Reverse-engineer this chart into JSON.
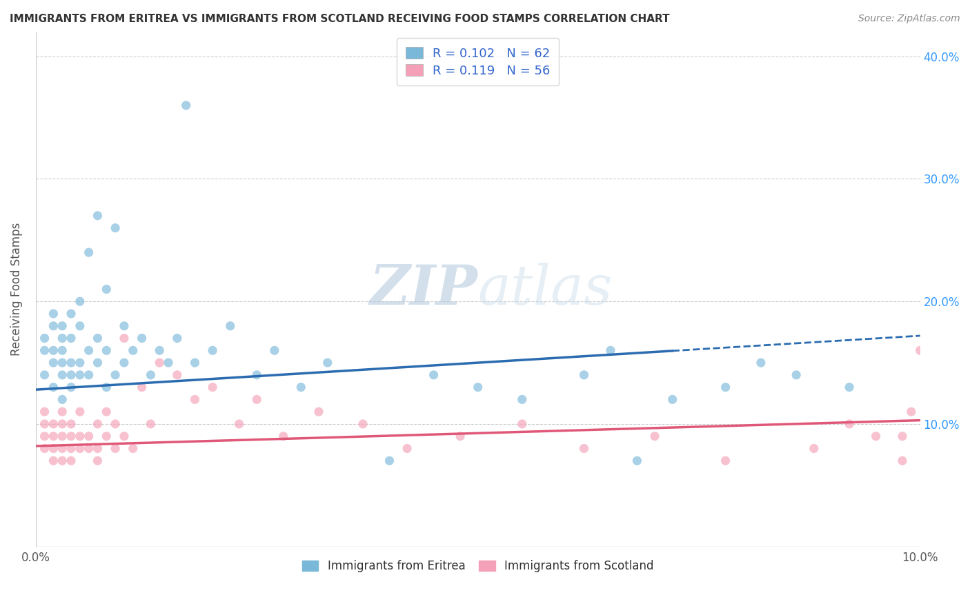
{
  "title": "IMMIGRANTS FROM ERITREA VS IMMIGRANTS FROM SCOTLAND RECEIVING FOOD STAMPS CORRELATION CHART",
  "source": "Source: ZipAtlas.com",
  "ylabel": "Receiving Food Stamps",
  "eritrea_color": "#7ab8d9",
  "scotland_color": "#f4a0b8",
  "trend_eritrea_color": "#2b6cb0",
  "trend_scotland_color": "#e05878",
  "watermark_color": "#c5d8ea",
  "xlim": [
    0.0,
    0.1
  ],
  "ylim": [
    0.0,
    0.42
  ],
  "eritrea_x": [
    0.001,
    0.001,
    0.001,
    0.002,
    0.002,
    0.002,
    0.002,
    0.002,
    0.003,
    0.003,
    0.003,
    0.003,
    0.003,
    0.003,
    0.004,
    0.004,
    0.004,
    0.004,
    0.004,
    0.005,
    0.005,
    0.005,
    0.005,
    0.006,
    0.006,
    0.006,
    0.007,
    0.007,
    0.007,
    0.008,
    0.008,
    0.008,
    0.009,
    0.009,
    0.01,
    0.01,
    0.011,
    0.012,
    0.013,
    0.014,
    0.015,
    0.016,
    0.017,
    0.018,
    0.02,
    0.022,
    0.025,
    0.027,
    0.03,
    0.033,
    0.04,
    0.045,
    0.05,
    0.055,
    0.062,
    0.065,
    0.068,
    0.072,
    0.078,
    0.082,
    0.086,
    0.092
  ],
  "eritrea_y": [
    0.14,
    0.16,
    0.17,
    0.13,
    0.15,
    0.16,
    0.18,
    0.19,
    0.12,
    0.14,
    0.15,
    0.16,
    0.17,
    0.18,
    0.13,
    0.14,
    0.15,
    0.17,
    0.19,
    0.14,
    0.15,
    0.18,
    0.2,
    0.14,
    0.16,
    0.24,
    0.15,
    0.17,
    0.27,
    0.13,
    0.16,
    0.21,
    0.14,
    0.26,
    0.15,
    0.18,
    0.16,
    0.17,
    0.14,
    0.16,
    0.15,
    0.17,
    0.36,
    0.15,
    0.16,
    0.18,
    0.14,
    0.16,
    0.13,
    0.15,
    0.07,
    0.14,
    0.13,
    0.12,
    0.14,
    0.16,
    0.07,
    0.12,
    0.13,
    0.15,
    0.14,
    0.13
  ],
  "scotland_x": [
    0.001,
    0.001,
    0.001,
    0.001,
    0.002,
    0.002,
    0.002,
    0.002,
    0.003,
    0.003,
    0.003,
    0.003,
    0.003,
    0.004,
    0.004,
    0.004,
    0.004,
    0.005,
    0.005,
    0.005,
    0.006,
    0.006,
    0.007,
    0.007,
    0.007,
    0.008,
    0.008,
    0.009,
    0.009,
    0.01,
    0.01,
    0.011,
    0.012,
    0.013,
    0.014,
    0.016,
    0.018,
    0.02,
    0.023,
    0.025,
    0.028,
    0.032,
    0.037,
    0.042,
    0.048,
    0.055,
    0.062,
    0.07,
    0.078,
    0.088,
    0.092,
    0.095,
    0.098,
    0.098,
    0.099,
    0.1
  ],
  "scotland_y": [
    0.09,
    0.1,
    0.11,
    0.08,
    0.07,
    0.09,
    0.1,
    0.08,
    0.09,
    0.07,
    0.08,
    0.1,
    0.11,
    0.08,
    0.09,
    0.07,
    0.1,
    0.08,
    0.09,
    0.11,
    0.08,
    0.09,
    0.07,
    0.08,
    0.1,
    0.09,
    0.11,
    0.08,
    0.1,
    0.09,
    0.17,
    0.08,
    0.13,
    0.1,
    0.15,
    0.14,
    0.12,
    0.13,
    0.1,
    0.12,
    0.09,
    0.11,
    0.1,
    0.08,
    0.09,
    0.1,
    0.08,
    0.09,
    0.07,
    0.08,
    0.1,
    0.09,
    0.07,
    0.09,
    0.11,
    0.16
  ],
  "trend_eritrea_x0": 0.0,
  "trend_eritrea_y0": 0.128,
  "trend_eritrea_x1": 0.1,
  "trend_eritrea_y1": 0.172,
  "trend_eritrea_solid_end": 0.072,
  "trend_scotland_x0": 0.0,
  "trend_scotland_y0": 0.082,
  "trend_scotland_x1": 0.1,
  "trend_scotland_y1": 0.103
}
